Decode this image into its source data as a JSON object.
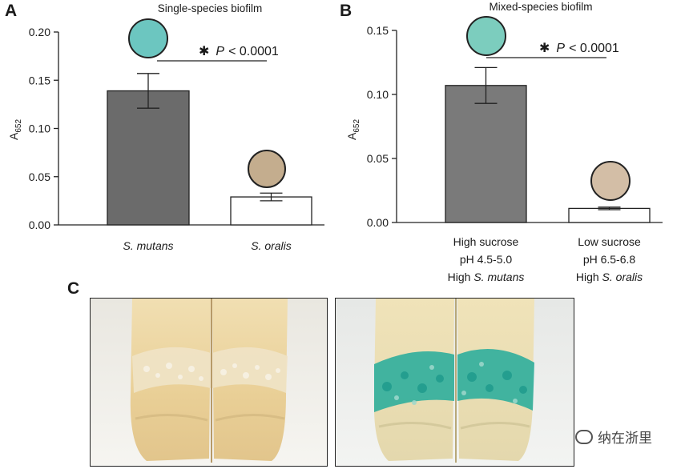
{
  "panel_letters": {
    "a": "A",
    "b": "B",
    "c": "C"
  },
  "chart_data": [
    {
      "type": "bar",
      "title": "Single-species biofilm",
      "ylabel_main": "A",
      "ylabel_sub": "652",
      "ylim": [
        0,
        0.2
      ],
      "yticks": [
        "0.00",
        "0.05",
        "0.10",
        "0.15",
        "0.20"
      ],
      "tick_values": [
        0,
        0.05,
        0.1,
        0.15,
        0.2
      ],
      "categories": [
        [
          "S. mutans"
        ],
        [
          "S. oralis"
        ]
      ],
      "values": [
        0.139,
        0.029
      ],
      "errors": [
        0.018,
        0.004
      ],
      "bar_colors": [
        "#6b6b6b",
        "#ffffff"
      ],
      "swatch_colors": [
        "#6cc6c0",
        "#c4ad8e"
      ],
      "significance": {
        "star": "✱",
        "p": "P",
        "rest": "< 0.0001"
      }
    },
    {
      "type": "bar",
      "title": "Mixed-species biofilm",
      "ylabel_main": "A",
      "ylabel_sub": "652",
      "ylim": [
        0,
        0.15
      ],
      "yticks": [
        "0.00",
        "0.05",
        "0.10",
        "0.15"
      ],
      "tick_values": [
        0,
        0.05,
        0.1,
        0.15
      ],
      "categories": [
        [
          "High sucrose",
          "pH 4.5-5.0",
          "High S. mutans"
        ],
        [
          "Low sucrose",
          "pH 6.5-6.8",
          "High S. oralis"
        ]
      ],
      "values": [
        0.107,
        0.011
      ],
      "errors": [
        0.014,
        0.001
      ],
      "bar_colors": [
        "#7a7a7a",
        "#ffffff"
      ],
      "swatch_colors": [
        "#7ccdbe",
        "#d3bea6"
      ],
      "significance": {
        "star": "✱",
        "p": "P",
        "rest": "< 0.0001"
      }
    }
  ],
  "watermark": "纳在浙里"
}
